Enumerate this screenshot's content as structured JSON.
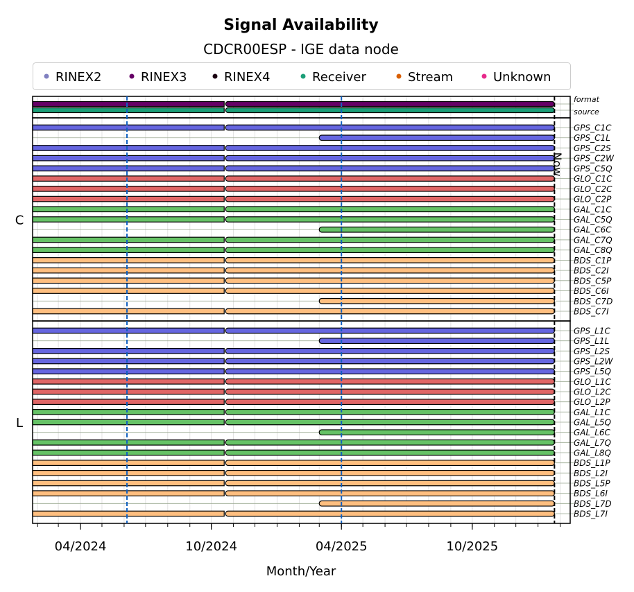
{
  "chart_data": {
    "type": "timeline",
    "title": "Signal Availability",
    "subtitle": "CDCR00ESP - IGE data node",
    "xlabel": "Month/Year",
    "xlim": [
      "2024-01-25",
      "2026-02-15"
    ],
    "xticks": [
      {
        "date": "2024-04-01",
        "label": "04/2024"
      },
      {
        "date": "2024-10-01",
        "label": "10/2024"
      },
      {
        "date": "2025-04-01",
        "label": "04/2025"
      },
      {
        "date": "2025-10-01",
        "label": "10/2025"
      }
    ],
    "now": {
      "date": "2026-01-24",
      "label": "Now"
    },
    "markers": [
      "2024-06-05",
      "2025-04-01"
    ],
    "legend": [
      {
        "label": "RINEX2",
        "color": "#8080c0"
      },
      {
        "label": "RINEX3",
        "color": "#660066"
      },
      {
        "label": "RINEX4",
        "color": "#1a0010"
      },
      {
        "label": "Receiver",
        "color": "#1b9e77"
      },
      {
        "label": "Stream",
        "color": "#d95f02"
      },
      {
        "label": "Unknown",
        "color": "#e7298a"
      }
    ],
    "colors": {
      "format": "#660066",
      "source": "#1b9e77",
      "GPS": "#6666e0",
      "GLO": "#e06666",
      "GAL": "#66c266",
      "BDS": "#ffbf80"
    },
    "panels": [
      {
        "label": "",
        "rows": [
          "format",
          "source"
        ]
      },
      {
        "label": "C",
        "rows": [
          "GPS_C1C",
          "GPS_C1L",
          "GPS_C2S",
          "GPS_C2W",
          "GPS_C5Q",
          "GLO_C1C",
          "GLO_C2C",
          "GLO_C2P",
          "GAL_C1C",
          "GAL_C5Q",
          "GAL_C6C",
          "GAL_C7Q",
          "GAL_C8Q",
          "BDS_C1P",
          "BDS_C2I",
          "BDS_C5P",
          "BDS_C6I",
          "BDS_C7D",
          "BDS_C7I"
        ]
      },
      {
        "label": "L",
        "rows": [
          "GPS_L1C",
          "GPS_L1L",
          "GPS_L2S",
          "GPS_L2W",
          "GPS_L5Q",
          "GLO_L1C",
          "GLO_L2C",
          "GLO_L2P",
          "GAL_L1C",
          "GAL_L5Q",
          "GAL_L6C",
          "GAL_L7Q",
          "GAL_L8Q",
          "BDS_L1P",
          "BDS_L2I",
          "BDS_L5P",
          "BDS_L6I",
          "BDS_L7D",
          "BDS_L7I"
        ]
      }
    ],
    "full_segments": [
      [
        "2024-01-25",
        "2024-10-19"
      ],
      [
        "2024-10-21",
        "2026-01-24"
      ]
    ],
    "late_segments": [
      [
        "2025-03-01",
        "2026-01-24"
      ]
    ],
    "late_rows": [
      "GPS_C1L",
      "GAL_C6C",
      "BDS_C7D",
      "GPS_L1L",
      "GAL_L6C",
      "BDS_L7D"
    ]
  }
}
